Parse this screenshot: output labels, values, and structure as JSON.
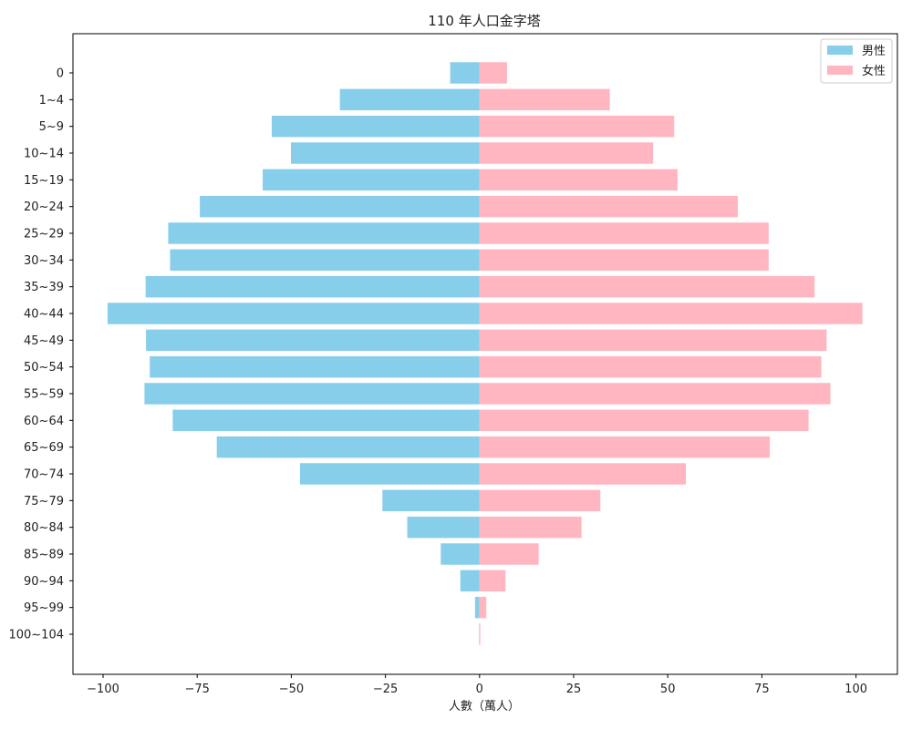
{
  "chart_data": {
    "type": "bar",
    "orientation": "horizontal",
    "title": "110 年人口金字塔",
    "xlabel": "人數（萬人）",
    "ylabel": "",
    "categories": [
      "0",
      "1~4",
      "5~9",
      "10~14",
      "15~19",
      "20~24",
      "25~29",
      "30~34",
      "35~39",
      "40~44",
      "45~49",
      "50~54",
      "55~59",
      "60~64",
      "65~69",
      "70~74",
      "75~79",
      "80~84",
      "85~89",
      "90~94",
      "95~99",
      "100~104"
    ],
    "series": [
      {
        "name": "男性",
        "color": "#87CEEB",
        "values": [
          -7.8,
          -37.1,
          -55.2,
          -50.1,
          -57.6,
          -74.3,
          -82.7,
          -82.2,
          -88.7,
          -98.8,
          -88.6,
          -87.6,
          -89.0,
          -81.5,
          -69.8,
          -47.7,
          -25.8,
          -19.2,
          -10.3,
          -5.1,
          -1.2,
          -0.1
        ]
      },
      {
        "name": "女性",
        "color": "#FFB6C1",
        "values": [
          7.3,
          34.6,
          51.7,
          46.1,
          52.6,
          68.6,
          76.8,
          76.8,
          89.0,
          101.7,
          92.2,
          90.8,
          93.2,
          87.4,
          77.1,
          54.8,
          32.1,
          27.1,
          15.7,
          6.9,
          1.8,
          0.2
        ]
      }
    ],
    "xlim": [
      -108,
      111
    ],
    "xticks": [
      -100,
      -75,
      -50,
      -25,
      0,
      25,
      50,
      75,
      100
    ],
    "xtick_labels": [
      "−100",
      "−75",
      "−50",
      "−25",
      "0",
      "25",
      "50",
      "75",
      "100"
    ],
    "grid": false,
    "legend_position": "top-right"
  }
}
